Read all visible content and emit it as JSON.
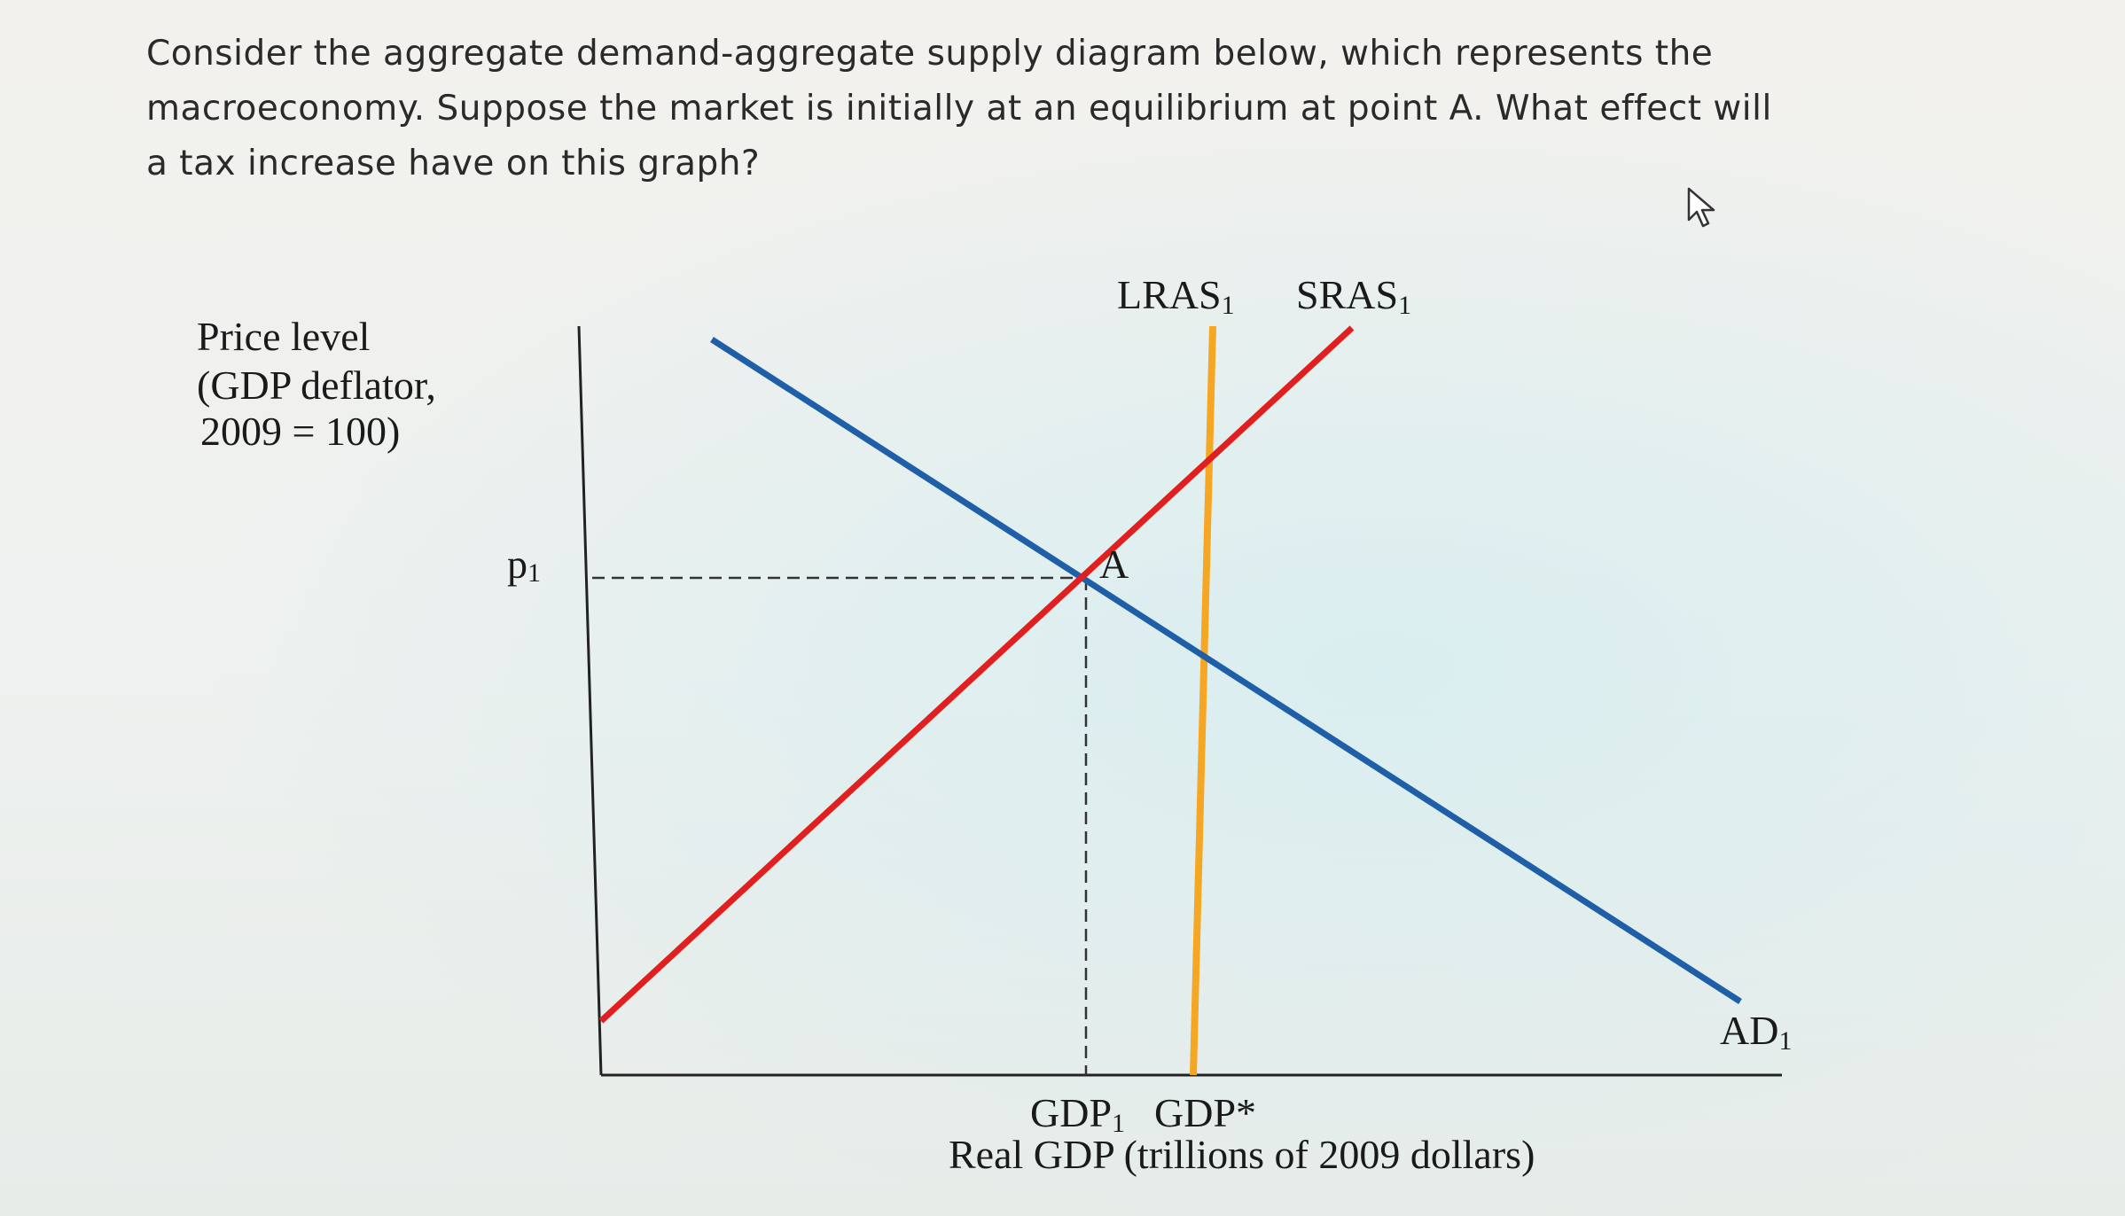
{
  "question": {
    "line1": "Consider the aggregate demand-aggregate supply diagram below, which represents the",
    "line2": "macroeconomy.  Suppose the market is initially at an equilibrium at point A.  What effect will",
    "line3": "a tax increase have on this graph?"
  },
  "diagram": {
    "y_axis_label_line1": "Price level",
    "y_axis_label_line2": "(GDP deflator,",
    "y_axis_label_line3": "2009 = 100)",
    "x_axis_label": "Real GDP (trillions of 2009 dollars)",
    "p1_label": "p",
    "p1_sub": "1",
    "gdp1_label": "GDP",
    "gdp1_sub": "1",
    "gdpstar_label": "GDP*",
    "point_a_label": "A",
    "lras_label": "LRAS",
    "lras_sub": "1",
    "sras_label": "SRAS",
    "sras_sub": "1",
    "ad_label": "AD",
    "ad_sub": "1",
    "colors": {
      "ad": "#1f5fa8",
      "sras": "#e21f1f",
      "lras": "#f5a623",
      "axes": "#222222"
    }
  },
  "cursor": {
    "icon": "pointer-cursor-icon"
  }
}
